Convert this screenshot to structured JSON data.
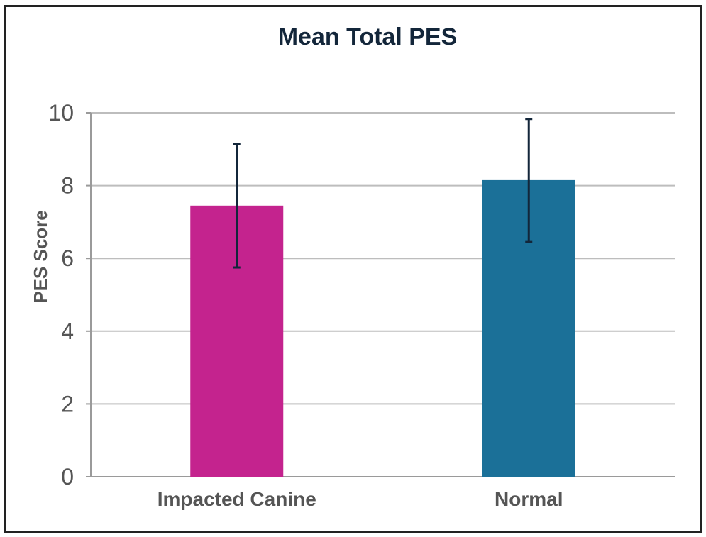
{
  "chart_data": {
    "type": "bar",
    "title": "Mean Total PES",
    "xlabel": "",
    "ylabel": "PES Score",
    "categories": [
      "Impacted Canine",
      "Normal"
    ],
    "values": [
      7.45,
      8.15
    ],
    "error_low": [
      5.75,
      6.45
    ],
    "error_high": [
      9.15,
      9.83
    ],
    "colors": [
      "#c4238e",
      "#1b7098"
    ],
    "error_bar_color": "#13263a",
    "ylim": [
      0,
      10
    ],
    "yticks": [
      "0",
      "2",
      "4",
      "6",
      "8",
      "10"
    ],
    "grid": true,
    "legend": "none"
  }
}
